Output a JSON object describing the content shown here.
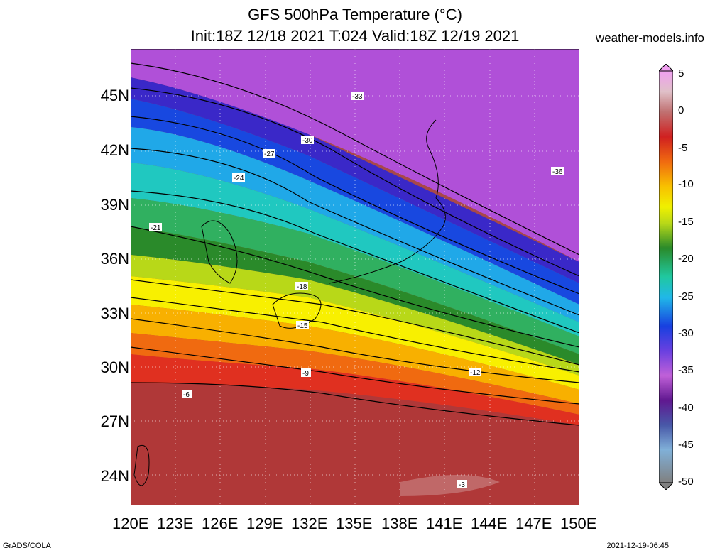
{
  "title_line1": "GFS 500hPa Temperature (°C)",
  "title_line2": "Init:18Z 12/18 2021 T:024 Valid:18Z 12/19 2021",
  "site": "weather-models.info",
  "lat_labels": [
    "45N",
    "42N",
    "39N",
    "36N",
    "33N",
    "30N",
    "27N",
    "24N"
  ],
  "lon_labels": [
    "120E",
    "123E",
    "126E",
    "129E",
    "132E",
    "135E",
    "138E",
    "141E",
    "144E",
    "147E",
    "150E"
  ],
  "colorbar_labels": [
    "5",
    "0",
    "-5",
    "-10",
    "-15",
    "-20",
    "-25",
    "-30",
    "-35",
    "-40",
    "-45",
    "-50"
  ],
  "contour_labels": [
    "-36",
    "-33",
    "-30",
    "-27",
    "-24",
    "-21",
    "-18",
    "-15",
    "-12",
    "-9",
    "-6",
    "-3"
  ],
  "footer_left": "GrADS/COLA",
  "footer_right": "2021-12-19-06:45",
  "colors": {
    "warm_red": "#a82828",
    "orange": "#f08a10",
    "yellow": "#f8f000",
    "green": "#2a9a2a",
    "cyan": "#20c0d0",
    "blue": "#1848e0",
    "violet": "#b050d8",
    "magenta": "#e070e0"
  }
}
